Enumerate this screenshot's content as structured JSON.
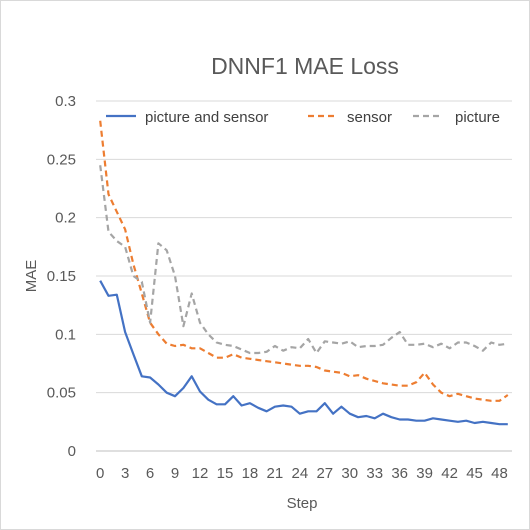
{
  "chart_data": {
    "type": "line",
    "title": "DNNF1 MAE Loss",
    "xlabel": "Step",
    "ylabel": "MAE",
    "x": [
      0,
      1,
      2,
      3,
      4,
      5,
      6,
      7,
      8,
      9,
      10,
      11,
      12,
      13,
      14,
      15,
      16,
      17,
      18,
      19,
      20,
      21,
      22,
      23,
      24,
      25,
      26,
      27,
      28,
      29,
      30,
      31,
      32,
      33,
      34,
      35,
      36,
      37,
      38,
      39,
      40,
      41,
      42,
      43,
      44,
      45,
      46,
      47,
      48,
      49
    ],
    "xticks": [
      0,
      3,
      6,
      9,
      12,
      15,
      18,
      21,
      24,
      27,
      30,
      33,
      36,
      39,
      42,
      45,
      48
    ],
    "ylim": [
      0,
      0.3
    ],
    "yticks": [
      {
        "v": 0,
        "label": "0"
      },
      {
        "v": 0.05,
        "label": "0.05"
      },
      {
        "v": 0.1,
        "label": "0.1"
      },
      {
        "v": 0.15,
        "label": "0.15"
      },
      {
        "v": 0.2,
        "label": "0.2"
      },
      {
        "v": 0.25,
        "label": "0.25"
      },
      {
        "v": 0.3,
        "label": "0.3"
      }
    ],
    "legend_position": "top",
    "grid": "horizontal",
    "series": [
      {
        "name": "picture and sensor",
        "color": "#4472c4",
        "dash": "solid",
        "values": [
          0.146,
          0.133,
          0.134,
          0.102,
          0.083,
          0.064,
          0.063,
          0.057,
          0.05,
          0.047,
          0.054,
          0.064,
          0.051,
          0.044,
          0.04,
          0.04,
          0.047,
          0.039,
          0.041,
          0.037,
          0.034,
          0.038,
          0.039,
          0.038,
          0.032,
          0.034,
          0.034,
          0.041,
          0.032,
          0.038,
          0.032,
          0.029,
          0.03,
          0.028,
          0.032,
          0.029,
          0.027,
          0.027,
          0.026,
          0.026,
          0.028,
          0.027,
          0.026,
          0.025,
          0.026,
          0.024,
          0.025,
          0.024,
          0.023,
          0.023
        ]
      },
      {
        "name": "sensor",
        "color": "#ed7d31",
        "dash": "dashed",
        "values": [
          0.283,
          0.22,
          0.205,
          0.19,
          0.16,
          0.135,
          0.11,
          0.1,
          0.092,
          0.09,
          0.091,
          0.088,
          0.088,
          0.084,
          0.08,
          0.08,
          0.083,
          0.08,
          0.079,
          0.078,
          0.077,
          0.076,
          0.075,
          0.074,
          0.073,
          0.073,
          0.072,
          0.069,
          0.068,
          0.067,
          0.064,
          0.065,
          0.062,
          0.06,
          0.058,
          0.057,
          0.056,
          0.056,
          0.059,
          0.067,
          0.057,
          0.05,
          0.047,
          0.049,
          0.047,
          0.045,
          0.044,
          0.043,
          0.043,
          0.048
        ]
      },
      {
        "name": "picture",
        "color": "#a5a5a5",
        "dash": "dashed",
        "values": [
          0.245,
          0.188,
          0.18,
          0.175,
          0.15,
          0.145,
          0.11,
          0.178,
          0.172,
          0.15,
          0.107,
          0.135,
          0.11,
          0.1,
          0.093,
          0.091,
          0.09,
          0.087,
          0.084,
          0.084,
          0.085,
          0.09,
          0.086,
          0.089,
          0.088,
          0.096,
          0.084,
          0.094,
          0.093,
          0.092,
          0.094,
          0.089,
          0.09,
          0.09,
          0.091,
          0.097,
          0.102,
          0.091,
          0.091,
          0.092,
          0.089,
          0.092,
          0.088,
          0.093,
          0.093,
          0.09,
          0.086,
          0.093,
          0.091,
          0.092
        ]
      }
    ]
  }
}
